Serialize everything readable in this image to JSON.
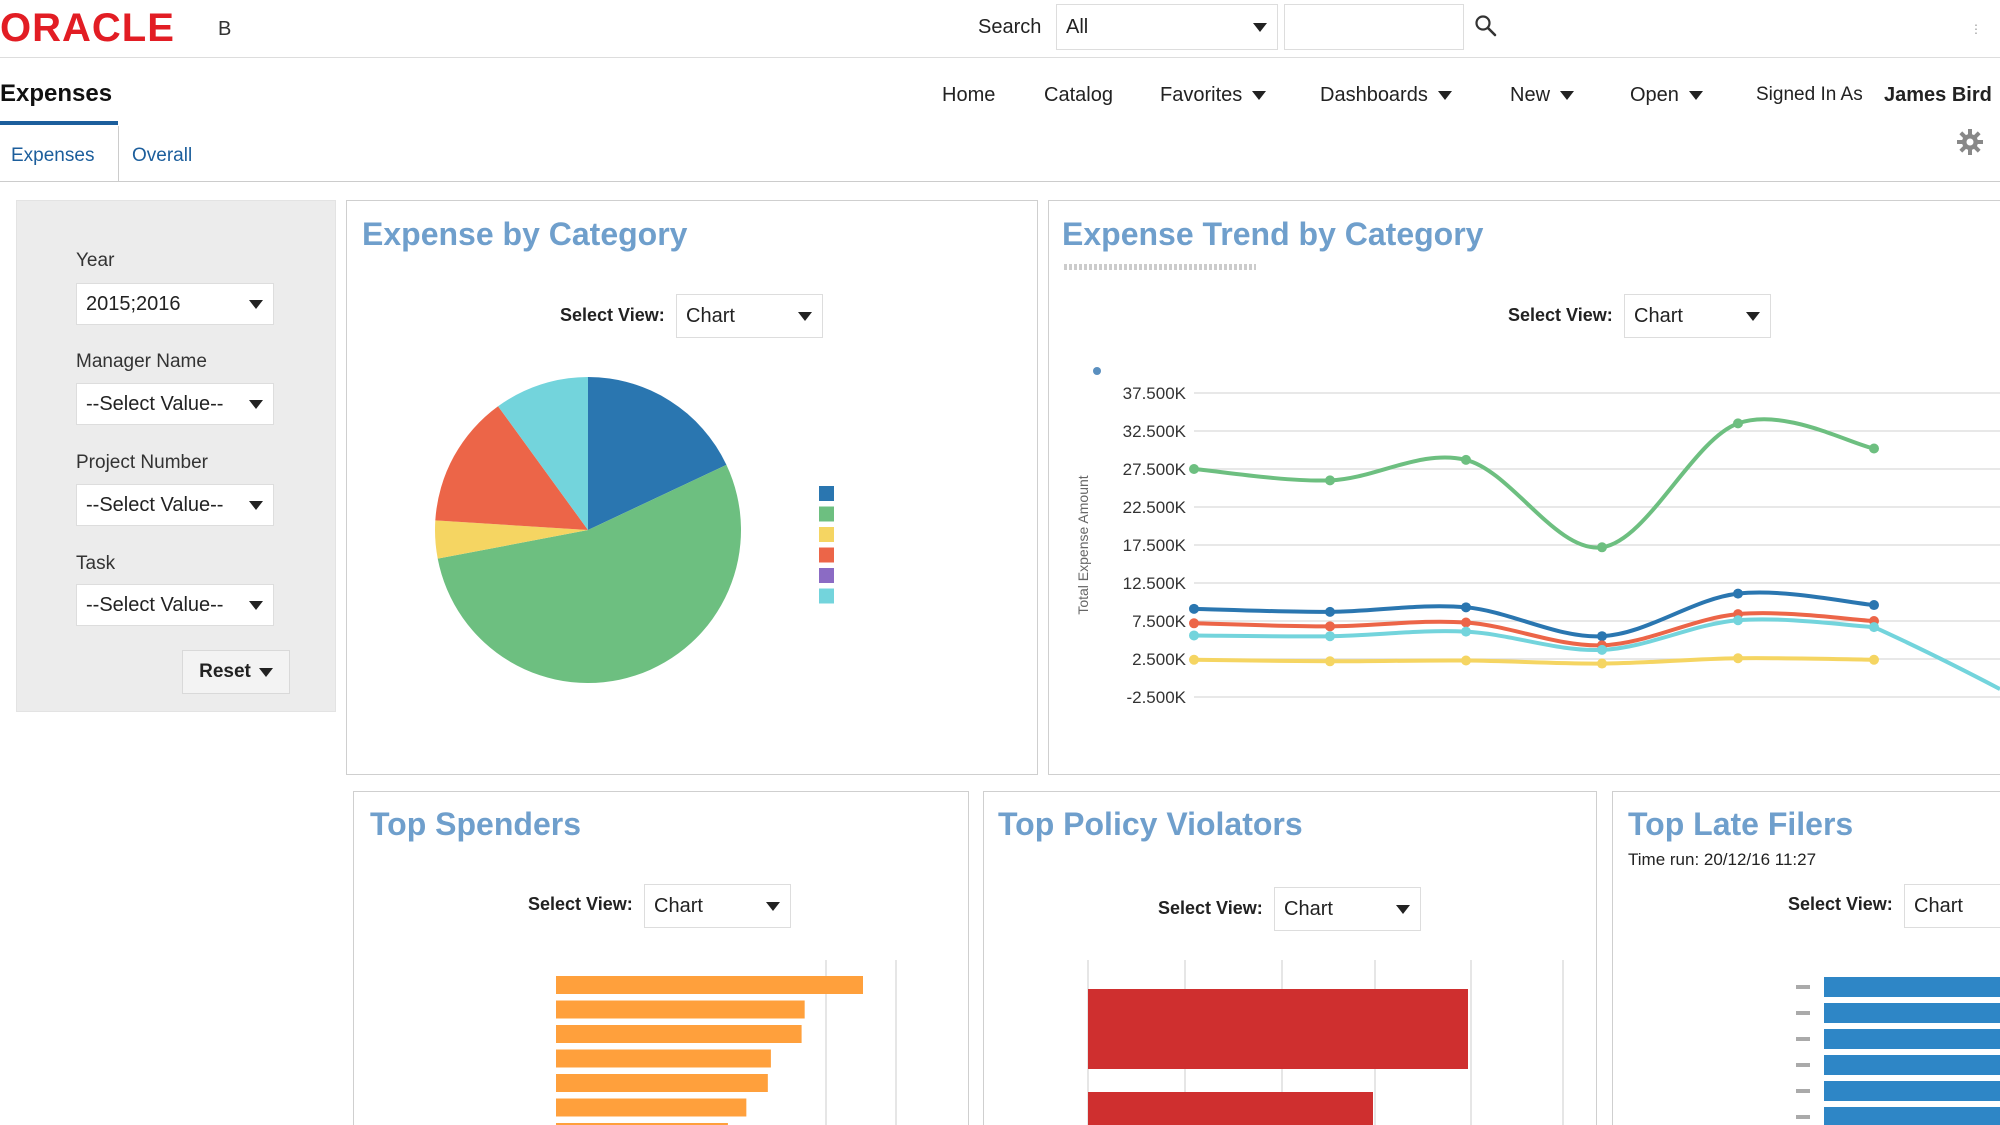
{
  "header": {
    "logo_text": "ORACLE",
    "logo_suffix": "B",
    "search_label": "Search",
    "search_scope": "All",
    "search_value": ""
  },
  "nav": {
    "page_title": "Expenses",
    "items": [
      "Home",
      "Catalog",
      "Favorites",
      "Dashboards",
      "New",
      "Open"
    ],
    "signed_in_label": "Signed In As",
    "user_name": "James Bird"
  },
  "tabs": [
    "Expenses",
    "Overall"
  ],
  "prompts": {
    "year_label": "Year",
    "year_value": "2015;2016",
    "manager_label": "Manager Name",
    "manager_value": "--Select Value--",
    "project_label": "Project Number",
    "project_value": "--Select Value--",
    "task_label": "Task",
    "task_value": "--Select Value--",
    "reset_label": "Reset"
  },
  "panels": {
    "expense_by_category": {
      "title": "Expense by Category",
      "view_label": "Select View:",
      "view_value": "Chart"
    },
    "expense_trend": {
      "title": "Expense Trend by Category",
      "view_label": "Select View:",
      "view_value": "Chart"
    },
    "top_spenders": {
      "title": "Top Spenders",
      "view_label": "Select View:",
      "view_value": "Chart"
    },
    "top_violators": {
      "title": "Top Policy Violators",
      "view_label": "Select View:",
      "view_value": "Chart"
    },
    "top_late_filers": {
      "title": "Top Late Filers",
      "subtitle": "Time run: 20/12/16 11:27",
      "view_label": "Select View:",
      "view_value": "Chart"
    }
  },
  "colors": {
    "blue": "#2a76b0",
    "green": "#6dbf80",
    "yellow": "#f5d562",
    "red": "#ec6548",
    "purple": "#8b6bc4",
    "cyan": "#73d4dc",
    "orange": "#ffa03c",
    "crimson": "#cf2f2f",
    "bar_blue": "#2e86c6"
  },
  "chart_data": [
    {
      "type": "pie",
      "title": "Expense by Category",
      "values": [
        18,
        54,
        4,
        14,
        0,
        10
      ],
      "colors": [
        "#2a76b0",
        "#6dbf80",
        "#f5d562",
        "#ec6548",
        "#8b6bc4",
        "#73d4dc"
      ]
    },
    {
      "type": "line",
      "title": "Expense Trend by Category",
      "ylabel": "Total Expense Amount",
      "yticks": [
        "37.500K",
        "32.500K",
        "27.500K",
        "22.500K",
        "17.500K",
        "12.500K",
        "7.500K",
        "2.500K",
        "-2.500K"
      ],
      "ylim": [
        -2500,
        37500
      ],
      "series": [
        {
          "color": "#6dbf80",
          "values": [
            27500,
            26000,
            28700,
            17200,
            33500,
            30200
          ]
        },
        {
          "color": "#2a76b0",
          "values": [
            9100,
            8700,
            9300,
            5500,
            11100,
            9600
          ]
        },
        {
          "color": "#ec6548",
          "values": [
            7200,
            6800,
            7300,
            4300,
            8400,
            7500
          ]
        },
        {
          "color": "#73d4dc",
          "values": [
            5600,
            5500,
            6100,
            3700,
            7600,
            6700
          ]
        },
        {
          "color": "#f5d562",
          "values": [
            2400,
            2200,
            2300,
            1900,
            2600,
            2400
          ]
        }
      ]
    },
    {
      "type": "bar",
      "title": "Top Spenders",
      "values": [
        100,
        81,
        80,
        70,
        69,
        62,
        56
      ],
      "color": "#ffa03c"
    },
    {
      "type": "bar",
      "title": "Top Policy Violators",
      "values": [
        100,
        75
      ],
      "color": "#cf2f2f"
    },
    {
      "type": "bar",
      "title": "Top Late Filers",
      "values": [
        100,
        100,
        100,
        100,
        100,
        100
      ],
      "color": "#2e86c6"
    }
  ]
}
